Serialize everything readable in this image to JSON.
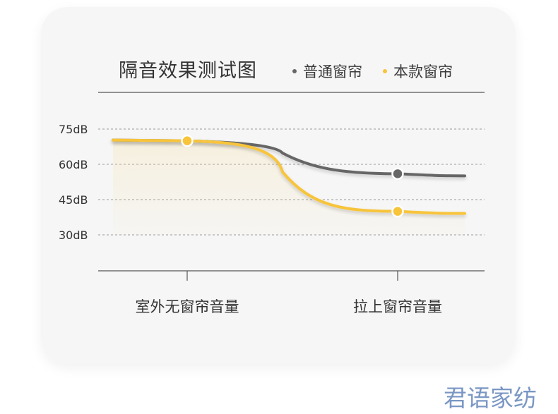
{
  "chart_data": {
    "type": "line",
    "title": "隔音效果测试图",
    "categories": [
      "室外无窗帘音量",
      "拉上窗帘音量"
    ],
    "yticks": [
      "75dB",
      "60dB",
      "45dB",
      "30dB"
    ],
    "ytick_values": [
      75,
      60,
      45,
      30
    ],
    "ylim": [
      15,
      75
    ],
    "legend_position": "top-right",
    "grid": true,
    "series": [
      {
        "name": "普通窗帘",
        "values": [
          70,
          56
        ],
        "color": "#666666"
      },
      {
        "name": "本款窗帘",
        "values": [
          70,
          40
        ],
        "color": "#f7c43a"
      }
    ]
  },
  "watermark": "君语家纺"
}
